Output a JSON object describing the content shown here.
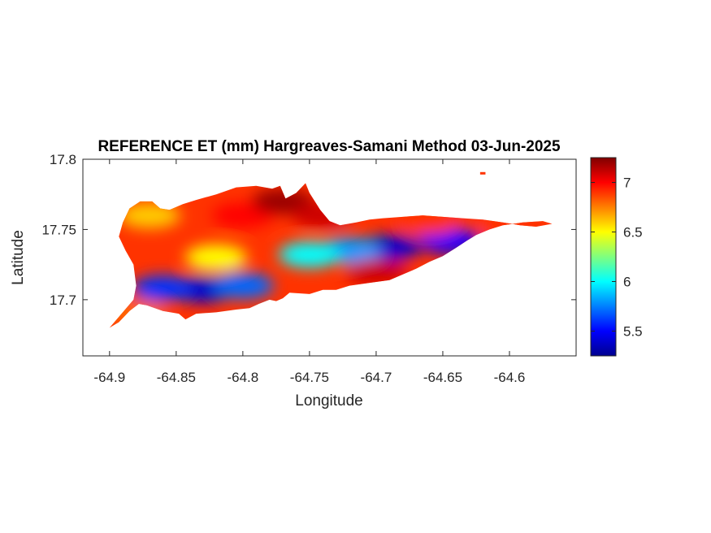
{
  "chart_data": {
    "type": "heatmap",
    "title": "REFERENCE ET (mm) Hargreaves-Samani Method  03-Jun-2025",
    "xlabel": "Longitude",
    "ylabel": "Latitude",
    "xlim": [
      -64.92,
      -64.55
    ],
    "ylim": [
      17.66,
      17.8
    ],
    "x_ticks": [
      -64.9,
      -64.85,
      -64.8,
      -64.75,
      -64.7,
      -64.65,
      -64.6
    ],
    "x_tick_labels": [
      "-64.9",
      "-64.85",
      "-64.8",
      "-64.75",
      "-64.7",
      "-64.65",
      "-64.6"
    ],
    "y_ticks": [
      17.7,
      17.75,
      17.8
    ],
    "y_tick_labels": [
      "17.7",
      "17.75",
      "17.8"
    ],
    "colormap": "jet",
    "clim": [
      5.25,
      7.25
    ],
    "colorbar_ticks": [
      5.5,
      6,
      6.5,
      7
    ],
    "colorbar_tick_labels": [
      "5.5",
      "6",
      "6.5",
      "7"
    ],
    "grid": false,
    "island_outline_lonlat": [
      [
        -64.9,
        17.68
      ],
      [
        -64.893,
        17.684
      ],
      [
        -64.885,
        17.692
      ],
      [
        -64.878,
        17.697
      ],
      [
        -64.872,
        17.696
      ],
      [
        -64.86,
        17.692
      ],
      [
        -64.848,
        17.69
      ],
      [
        -64.843,
        17.686
      ],
      [
        -64.835,
        17.69
      ],
      [
        -64.82,
        17.691
      ],
      [
        -64.805,
        17.693
      ],
      [
        -64.795,
        17.694
      ],
      [
        -64.788,
        17.697
      ],
      [
        -64.78,
        17.7
      ],
      [
        -64.775,
        17.699
      ],
      [
        -64.77,
        17.701
      ],
      [
        -64.765,
        17.705
      ],
      [
        -64.75,
        17.704
      ],
      [
        -64.74,
        17.707
      ],
      [
        -64.73,
        17.707
      ],
      [
        -64.72,
        17.71
      ],
      [
        -64.705,
        17.712
      ],
      [
        -64.69,
        17.714
      ],
      [
        -64.68,
        17.718
      ],
      [
        -64.67,
        17.722
      ],
      [
        -64.66,
        17.727
      ],
      [
        -64.65,
        17.731
      ],
      [
        -64.64,
        17.737
      ],
      [
        -64.632,
        17.742
      ],
      [
        -64.625,
        17.746
      ],
      [
        -64.615,
        17.75
      ],
      [
        -64.605,
        17.753
      ],
      [
        -64.59,
        17.755
      ],
      [
        -64.575,
        17.756
      ],
      [
        -64.568,
        17.754
      ],
      [
        -64.58,
        17.752
      ],
      [
        -64.592,
        17.753
      ],
      [
        -64.605,
        17.755
      ],
      [
        -64.62,
        17.757
      ],
      [
        -64.635,
        17.758
      ],
      [
        -64.65,
        17.759
      ],
      [
        -64.665,
        17.76
      ],
      [
        -64.68,
        17.759
      ],
      [
        -64.695,
        17.758
      ],
      [
        -64.705,
        17.757
      ],
      [
        -64.715,
        17.755
      ],
      [
        -64.727,
        17.753
      ],
      [
        -64.735,
        17.756
      ],
      [
        -64.742,
        17.764
      ],
      [
        -64.75,
        17.776
      ],
      [
        -64.753,
        17.783
      ],
      [
        -64.76,
        17.776
      ],
      [
        -64.768,
        17.772
      ],
      [
        -64.772,
        17.781
      ],
      [
        -64.778,
        17.779
      ],
      [
        -64.79,
        17.781
      ],
      [
        -64.805,
        17.78
      ],
      [
        -64.82,
        17.775
      ],
      [
        -64.835,
        17.771
      ],
      [
        -64.845,
        17.768
      ],
      [
        -64.855,
        17.764
      ],
      [
        -64.862,
        17.765
      ],
      [
        -64.868,
        17.77
      ],
      [
        -64.877,
        17.77
      ],
      [
        -64.885,
        17.765
      ],
      [
        -64.89,
        17.755
      ],
      [
        -64.893,
        17.745
      ],
      [
        -64.888,
        17.735
      ],
      [
        -64.882,
        17.725
      ],
      [
        -64.88,
        17.71
      ],
      [
        -64.882,
        17.7
      ],
      [
        -64.891,
        17.69
      ],
      [
        -64.9,
        17.68
      ]
    ],
    "islet_lonlat": [
      [
        -64.622,
        17.79
      ],
      [
        -64.618,
        17.79
      ]
    ],
    "field_value_samples": [
      {
        "lon": -64.83,
        "lat": 17.707,
        "value": 5.4
      },
      {
        "lon": -64.86,
        "lat": 17.708,
        "value": 5.6
      },
      {
        "lon": -64.8,
        "lat": 17.71,
        "value": 5.7
      },
      {
        "lon": -64.69,
        "lat": 17.737,
        "value": 5.4
      },
      {
        "lon": -64.645,
        "lat": 17.742,
        "value": 5.5
      },
      {
        "lon": -64.72,
        "lat": 17.735,
        "value": 5.8
      },
      {
        "lon": -64.75,
        "lat": 17.732,
        "value": 6.0
      },
      {
        "lon": -64.82,
        "lat": 17.73,
        "value": 6.5
      },
      {
        "lon": -64.87,
        "lat": 17.76,
        "value": 6.6
      },
      {
        "lon": -64.8,
        "lat": 17.76,
        "value": 7.0
      },
      {
        "lon": -64.77,
        "lat": 17.77,
        "value": 7.2
      },
      {
        "lon": -64.74,
        "lat": 17.76,
        "value": 7.1
      },
      {
        "lon": -64.7,
        "lat": 17.72,
        "value": 7.1
      },
      {
        "lon": -64.66,
        "lat": 17.755,
        "value": 6.9
      },
      {
        "lon": -64.6,
        "lat": 17.752,
        "value": 6.9
      },
      {
        "lon": -64.88,
        "lat": 17.69,
        "value": 6.8
      }
    ]
  }
}
